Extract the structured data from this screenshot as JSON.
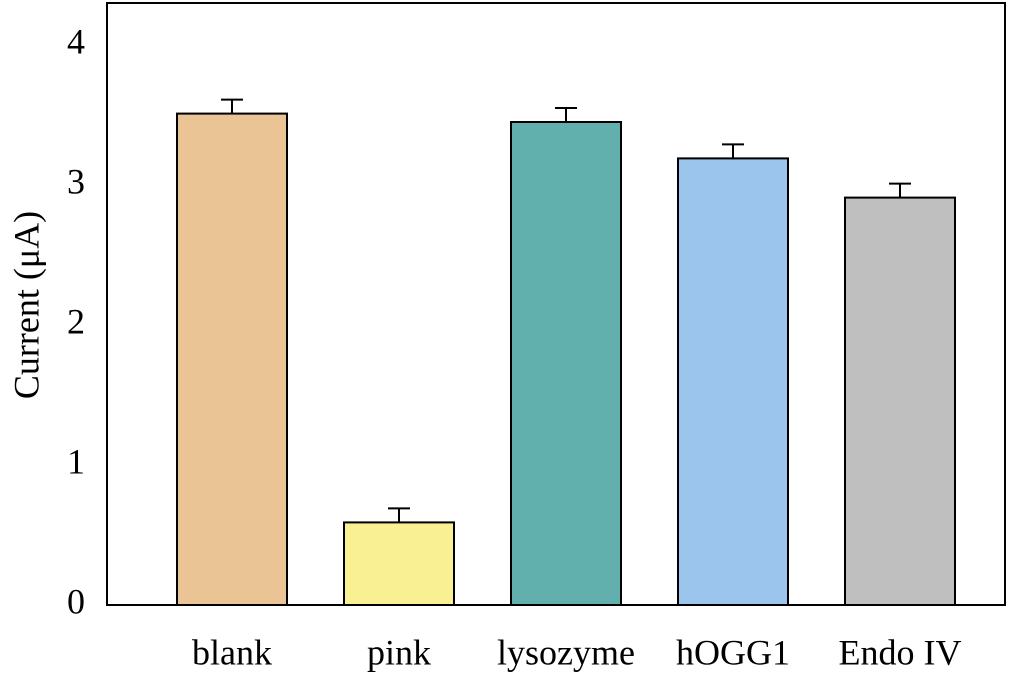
{
  "chart_data": {
    "type": "bar",
    "ylabel": "Current (μA)",
    "categories": [
      "blank",
      "pink",
      "lysozyme",
      "hOGG1",
      "Endo IV"
    ],
    "values": [
      3.51,
      0.59,
      3.45,
      3.19,
      2.91
    ],
    "errors": [
      0.1,
      0.1,
      0.1,
      0.1,
      0.1
    ],
    "colors": [
      "#ebc495",
      "#f9ef93",
      "#61b0ad",
      "#9bc5ec",
      "#bfbfbf"
    ],
    "ylim": [
      0,
      4.3
    ],
    "yticks": [
      0,
      1,
      2,
      3,
      4
    ],
    "grid": false
  }
}
